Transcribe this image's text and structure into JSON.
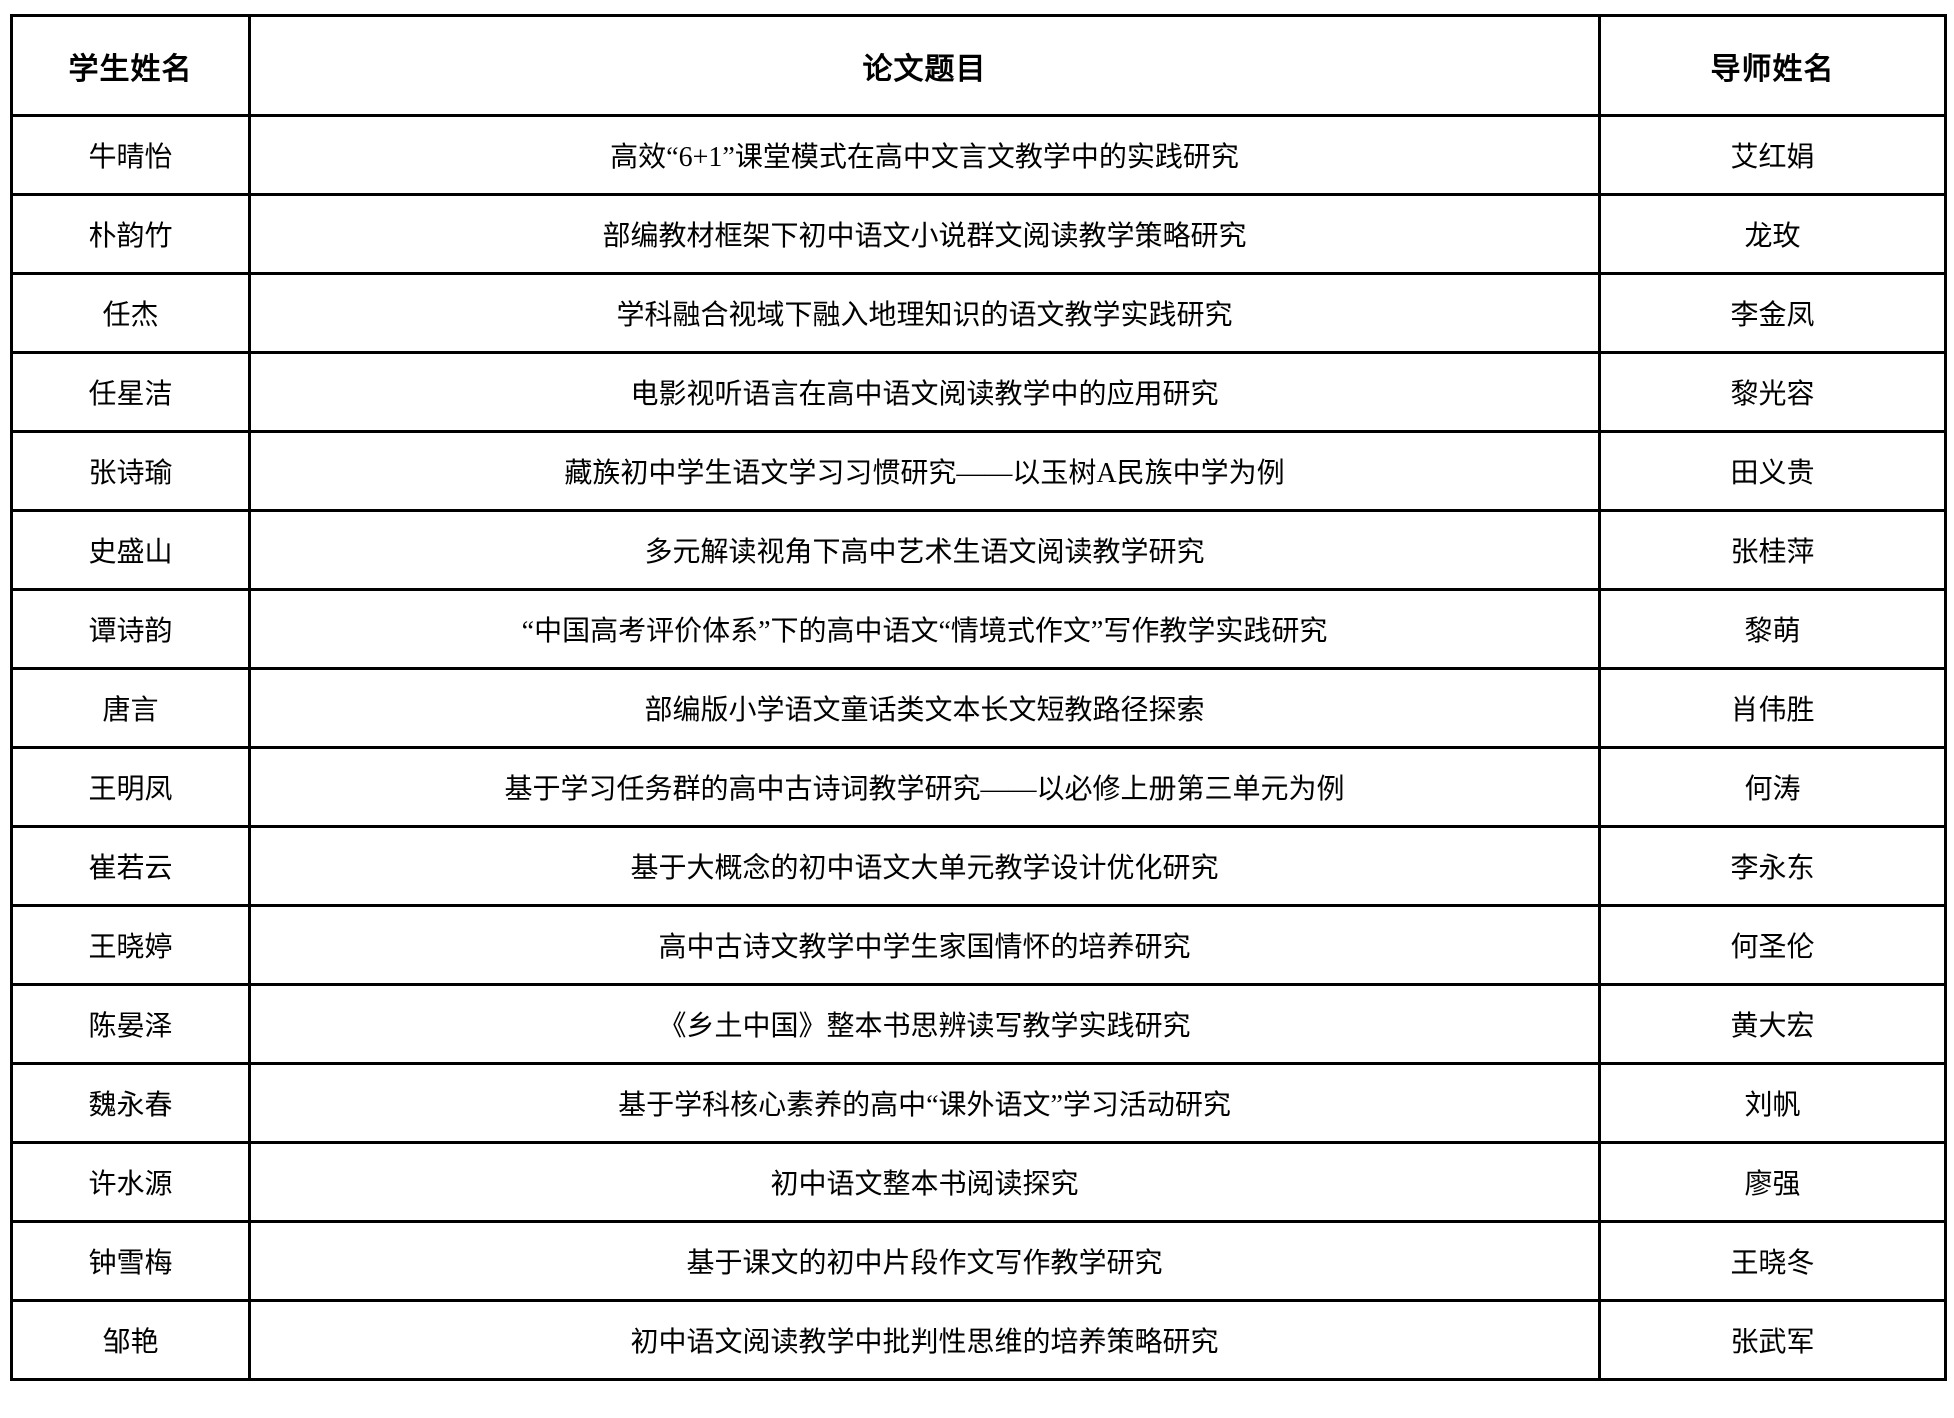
{
  "table": {
    "headers": [
      {
        "label": "学生姓名"
      },
      {
        "label": "论文题目"
      },
      {
        "label": "导师姓名"
      }
    ],
    "rows": [
      {
        "student": "牛晴怡",
        "title": "高效“6+1”课堂模式在高中文言文教学中的实践研究",
        "advisor": "艾红娟"
      },
      {
        "student": "朴韵竹",
        "title": "部编教材框架下初中语文小说群文阅读教学策略研究",
        "advisor": "龙玫"
      },
      {
        "student": "任杰",
        "title": "学科融合视域下融入地理知识的语文教学实践研究",
        "advisor": "李金凤"
      },
      {
        "student": "任星洁",
        "title": "电影视听语言在高中语文阅读教学中的应用研究",
        "advisor": "黎光容"
      },
      {
        "student": "张诗瑜",
        "title": "藏族初中学生语文学习习惯研究——以玉树A民族中学为例",
        "advisor": "田义贵"
      },
      {
        "student": "史盛山",
        "title": "多元解读视角下高中艺术生语文阅读教学研究",
        "advisor": "张桂萍"
      },
      {
        "student": "谭诗韵",
        "title": "“中国高考评价体系”下的高中语文“情境式作文”写作教学实践研究",
        "advisor": "黎萌"
      },
      {
        "student": "唐言",
        "title": "部编版小学语文童话类文本长文短教路径探索",
        "advisor": "肖伟胜"
      },
      {
        "student": "王明凤",
        "title": "基于学习任务群的高中古诗词教学研究——以必修上册第三单元为例",
        "advisor": "何涛"
      },
      {
        "student": "崔若云",
        "title": "基于大概念的初中语文大单元教学设计优化研究",
        "advisor": "李永东"
      },
      {
        "student": "王晓婷",
        "title": "高中古诗文教学中学生家国情怀的培养研究",
        "advisor": "何圣伦"
      },
      {
        "student": "陈晏泽",
        "title": "《乡土中国》整本书思辨读写教学实践研究",
        "advisor": "黄大宏"
      },
      {
        "student": "魏永春",
        "title": "基于学科核心素养的高中“课外语文”学习活动研究",
        "advisor": "刘帆"
      },
      {
        "student": "许水源",
        "title": "初中语文整本书阅读探究",
        "advisor": "廖强"
      },
      {
        "student": "钟雪梅",
        "title": "基于课文的初中片段作文写作教学研究",
        "advisor": "王晓冬"
      },
      {
        "student": "邹艳",
        "title": "初中语文阅读教学中批判性思维的培养策略研究",
        "advisor": "张武军"
      }
    ]
  },
  "colors": {
    "border": "#000000",
    "text": "#000000",
    "background": "#ffffff"
  }
}
